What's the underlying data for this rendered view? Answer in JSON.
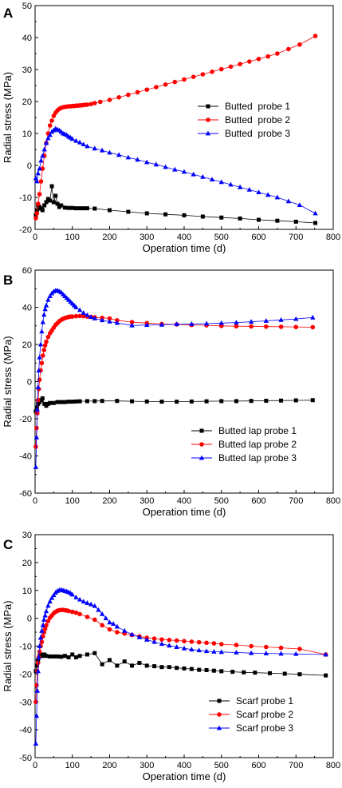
{
  "chart_data": [
    {
      "panel_label": "A",
      "type": "line",
      "xlabel": "Operation time (d)",
      "ylabel": "Radial stress (MPa)",
      "xlim": [
        0,
        800
      ],
      "ylim": [
        -20,
        50
      ],
      "xticks": [
        0,
        100,
        200,
        300,
        400,
        500,
        600,
        700,
        800
      ],
      "yticks": [
        -20,
        -10,
        0,
        10,
        20,
        30,
        40,
        50
      ],
      "legend_position": "middle-right",
      "series": [
        {
          "name": "Butted  probe 1",
          "color": "#000000",
          "marker": "square",
          "x": [
            2,
            5,
            8,
            12,
            16,
            20,
            25,
            30,
            35,
            40,
            45,
            50,
            55,
            60,
            65,
            70,
            80,
            90,
            100,
            110,
            120,
            130,
            140,
            160,
            200,
            250,
            300,
            350,
            400,
            450,
            500,
            550,
            600,
            650,
            700,
            752
          ],
          "y": [
            -15.5,
            -14,
            -12.5,
            -13,
            -13.5,
            -14,
            -12.5,
            -11.5,
            -10.5,
            -11,
            -6.5,
            -11.5,
            -9.5,
            -12,
            -13,
            -12.5,
            -13.2,
            -13.3,
            -13.3,
            -13.4,
            -13.4,
            -13.4,
            -13.4,
            -13.5,
            -14,
            -14.5,
            -15,
            -15.3,
            -15.6,
            -16,
            -16.3,
            -16.6,
            -17,
            -17.3,
            -17.6,
            -18
          ]
        },
        {
          "name": "Butted  probe 2",
          "color": "#ff0000",
          "marker": "circle",
          "x": [
            2,
            5,
            8,
            12,
            16,
            20,
            25,
            30,
            35,
            40,
            45,
            50,
            55,
            60,
            65,
            70,
            75,
            80,
            85,
            90,
            95,
            100,
            105,
            110,
            115,
            120,
            125,
            130,
            135,
            140,
            150,
            160,
            175,
            200,
            225,
            250,
            275,
            300,
            325,
            350,
            375,
            400,
            425,
            450,
            475,
            500,
            525,
            550,
            575,
            600,
            625,
            650,
            680,
            710,
            752
          ],
          "y": [
            -16.5,
            -15,
            -12,
            -9,
            -5,
            -1,
            3,
            7,
            10,
            12.5,
            14,
            15.5,
            16.5,
            17.2,
            17.7,
            18,
            18.2,
            18.3,
            18.4,
            18.5,
            18.5,
            18.6,
            18.6,
            18.7,
            18.7,
            18.8,
            18.8,
            18.9,
            19,
            19,
            19.2,
            19.5,
            19.9,
            20.5,
            21.3,
            22.1,
            22.9,
            23.7,
            24.5,
            25.3,
            26.1,
            26.9,
            27.7,
            28.5,
            29.3,
            30.1,
            30.9,
            31.7,
            32.5,
            33.3,
            34.1,
            35,
            36.4,
            37.8,
            40.5
          ]
        },
        {
          "name": "Butted  probe 3",
          "color": "#0000ff",
          "marker": "triangle",
          "x": [
            2,
            5,
            8,
            12,
            16,
            20,
            25,
            30,
            35,
            40,
            45,
            50,
            55,
            60,
            65,
            70,
            75,
            80,
            85,
            90,
            95,
            100,
            110,
            120,
            130,
            140,
            160,
            180,
            200,
            225,
            250,
            275,
            300,
            325,
            350,
            375,
            400,
            425,
            450,
            475,
            500,
            525,
            550,
            575,
            600,
            625,
            650,
            680,
            710,
            752
          ],
          "y": [
            -4,
            -5,
            -2.5,
            -1,
            1.5,
            3,
            5,
            7,
            8.5,
            9.5,
            10.5,
            11,
            11.5,
            11.2,
            11,
            10.5,
            10,
            9.8,
            9.5,
            9,
            8.7,
            8.3,
            7.7,
            7.2,
            6.6,
            6,
            5.3,
            4.7,
            4,
            3.3,
            2.5,
            1.8,
            1,
            0.3,
            -0.5,
            -1.3,
            -2,
            -2.8,
            -3.6,
            -4.4,
            -5.2,
            -6,
            -6.8,
            -7.6,
            -8.4,
            -9.2,
            -10,
            -11.2,
            -12.4,
            -15
          ]
        }
      ]
    },
    {
      "panel_label": "B",
      "type": "line",
      "xlabel": "Operation time (d)",
      "ylabel": "Radial stress (MPa)",
      "xlim": [
        0,
        800
      ],
      "ylim": [
        -60,
        60
      ],
      "xticks": [
        0,
        100,
        200,
        300,
        400,
        500,
        600,
        700,
        800
      ],
      "yticks": [
        -60,
        -40,
        -20,
        0,
        20,
        40,
        60
      ],
      "legend_position": "bottom-right",
      "series": [
        {
          "name": "Butted lap probe 1",
          "color": "#000000",
          "marker": "square",
          "x": [
            2,
            5,
            8,
            12,
            16,
            20,
            25,
            30,
            35,
            40,
            50,
            60,
            70,
            80,
            90,
            100,
            110,
            120,
            140,
            160,
            180,
            220,
            260,
            300,
            340,
            380,
            420,
            460,
            500,
            540,
            580,
            620,
            660,
            700,
            745
          ],
          "y": [
            -16,
            -14,
            -12,
            -11,
            -10,
            -9,
            -12,
            -13,
            -12,
            -11.5,
            -11.5,
            -11,
            -11,
            -11,
            -10.8,
            -10.8,
            -10.7,
            -10.6,
            -10.5,
            -10.5,
            -10.4,
            -10.4,
            -10.6,
            -10.7,
            -10.8,
            -10.8,
            -10.7,
            -10.6,
            -10.5,
            -10.5,
            -10.4,
            -10.3,
            -10.2,
            -10.1,
            -10
          ]
        },
        {
          "name": "Butted lap probe 2",
          "color": "#ff0000",
          "marker": "circle",
          "x": [
            2,
            4,
            6,
            8,
            10,
            12,
            15,
            18,
            21,
            24,
            27,
            30,
            35,
            40,
            45,
            50,
            55,
            60,
            65,
            70,
            75,
            80,
            85,
            90,
            95,
            100,
            110,
            120,
            130,
            140,
            150,
            160,
            180,
            200,
            220,
            260,
            300,
            340,
            380,
            420,
            460,
            500,
            540,
            580,
            620,
            660,
            700,
            745
          ],
          "y": [
            -35,
            -25,
            -17,
            -10,
            -4,
            1,
            6,
            10,
            14,
            17,
            19.5,
            21.5,
            24,
            26,
            27.5,
            29,
            30.5,
            31.5,
            32.5,
            33.2,
            33.8,
            34.2,
            34.5,
            34.8,
            35,
            35,
            35.2,
            35.3,
            35.2,
            35,
            34.8,
            34.6,
            34.3,
            34,
            33,
            32,
            31.5,
            31,
            30.8,
            30.5,
            30.3,
            30,
            29.8,
            29.7,
            29.6,
            29.5,
            29.4,
            29.3
          ]
        },
        {
          "name": "Butted lap probe 3",
          "color": "#0000ff",
          "marker": "triangle",
          "x": [
            2,
            4,
            6,
            8,
            10,
            12,
            15,
            18,
            21,
            24,
            27,
            30,
            35,
            40,
            45,
            50,
            55,
            60,
            65,
            70,
            75,
            80,
            85,
            90,
            95,
            100,
            105,
            110,
            120,
            130,
            140,
            150,
            160,
            180,
            200,
            220,
            260,
            300,
            340,
            380,
            420,
            460,
            500,
            540,
            580,
            620,
            660,
            700,
            745
          ],
          "y": [
            -46,
            -30,
            -15,
            -3,
            6,
            13,
            20,
            27,
            32,
            36,
            39,
            41,
            44,
            46,
            47.5,
            48.5,
            49,
            49,
            48.6,
            48,
            47,
            46,
            45,
            44,
            43,
            42,
            41,
            40,
            38.5,
            37,
            35.8,
            34.8,
            34,
            33,
            32.3,
            31.6,
            30.2,
            30.5,
            30.6,
            30.9,
            31,
            31.2,
            31.5,
            31.8,
            32.2,
            32.7,
            33.2,
            33.7,
            34.5
          ]
        }
      ]
    },
    {
      "panel_label": "C",
      "type": "line",
      "xlabel": "Operation time (d)",
      "ylabel": "Radial stress (MPa)",
      "xlim": [
        0,
        800
      ],
      "ylim": [
        -50,
        30
      ],
      "xticks": [
        0,
        100,
        200,
        300,
        400,
        500,
        600,
        700,
        800
      ],
      "yticks": [
        -50,
        -40,
        -30,
        -20,
        -10,
        0,
        10,
        20,
        30
      ],
      "legend_position": "bottom-right",
      "series": [
        {
          "name": "Scarf probe 1",
          "color": "#000000",
          "marker": "square",
          "x": [
            2,
            5,
            8,
            12,
            16,
            20,
            25,
            30,
            40,
            50,
            60,
            70,
            80,
            90,
            100,
            110,
            120,
            140,
            160,
            180,
            200,
            220,
            240,
            260,
            280,
            300,
            320,
            340,
            360,
            380,
            400,
            420,
            440,
            460,
            480,
            500,
            530,
            560,
            590,
            630,
            670,
            710,
            780
          ],
          "y": [
            -19,
            -17,
            -15,
            -13.5,
            -13,
            -13.5,
            -13,
            -13.5,
            -13.7,
            -13.7,
            -13.7,
            -13.8,
            -13.5,
            -14,
            -13,
            -14,
            -13.5,
            -13,
            -12.5,
            -16.5,
            -15,
            -17,
            -15.5,
            -17,
            -16,
            -17,
            -17.2,
            -17.5,
            -17.5,
            -17.8,
            -18,
            -18.2,
            -18.5,
            -18.6,
            -18.8,
            -19,
            -19.2,
            -19.4,
            -19.5,
            -19.7,
            -19.9,
            -20.1,
            -20.5
          ]
        },
        {
          "name": "Scarf probe 2",
          "color": "#ff0000",
          "marker": "circle",
          "x": [
            2,
            4,
            6,
            8,
            10,
            12,
            15,
            18,
            21,
            24,
            27,
            30,
            35,
            40,
            45,
            50,
            55,
            60,
            65,
            70,
            75,
            80,
            85,
            90,
            100,
            110,
            120,
            140,
            160,
            180,
            200,
            220,
            240,
            260,
            280,
            300,
            320,
            340,
            360,
            380,
            400,
            420,
            440,
            460,
            480,
            500,
            540,
            580,
            620,
            660,
            710,
            780
          ],
          "y": [
            -30,
            -24,
            -19,
            -16,
            -14,
            -12,
            -10,
            -8.5,
            -6.5,
            -5,
            -3.8,
            -2.5,
            -1,
            0.2,
            1,
            1.8,
            2.3,
            2.7,
            2.9,
            3,
            3,
            2.9,
            2.8,
            2.6,
            2.3,
            2,
            1.5,
            0.5,
            -0.5,
            -2.5,
            -4,
            -5,
            -5.5,
            -6,
            -6.5,
            -7,
            -7.3,
            -7.6,
            -7.8,
            -8,
            -8.2,
            -8.4,
            -8.6,
            -8.8,
            -9,
            -9.3,
            -9.6,
            -10,
            -10.3,
            -10.6,
            -11,
            -13
          ]
        },
        {
          "name": "Scarf probe 3",
          "color": "#0000ff",
          "marker": "triangle",
          "x": [
            2,
            4,
            6,
            8,
            10,
            12,
            15,
            18,
            21,
            24,
            27,
            30,
            35,
            40,
            45,
            50,
            55,
            60,
            65,
            70,
            75,
            80,
            85,
            90,
            95,
            100,
            110,
            120,
            130,
            140,
            150,
            160,
            170,
            180,
            190,
            200,
            210,
            220,
            240,
            260,
            280,
            300,
            320,
            340,
            360,
            380,
            400,
            420,
            440,
            460,
            480,
            500,
            540,
            580,
            620,
            660,
            700,
            780
          ],
          "y": [
            -45,
            -35,
            -26,
            -19,
            -14,
            -10,
            -7,
            -4.5,
            -2.5,
            -0.5,
            1,
            2.5,
            4.5,
            6,
            7.3,
            8.3,
            9.2,
            9.8,
            10.1,
            10.2,
            10,
            9.8,
            9.6,
            9.4,
            9,
            8.5,
            7.5,
            6.7,
            6,
            5.5,
            5,
            4.4,
            3,
            1.5,
            0,
            -1.5,
            -2,
            -3,
            -4.5,
            -5.8,
            -6.8,
            -7.7,
            -8.5,
            -9.2,
            -9.8,
            -10.3,
            -10.8,
            -11.2,
            -11.5,
            -11.8,
            -12,
            -12.1,
            -12.3,
            -12.5,
            -12.6,
            -12.7,
            -12.8,
            -13
          ]
        }
      ]
    }
  ]
}
